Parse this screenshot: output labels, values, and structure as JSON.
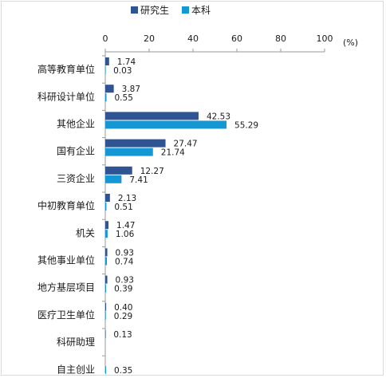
{
  "chart_data": {
    "type": "bar",
    "orientation": "horizontal",
    "unit_label": "(%)",
    "xlim": [
      0,
      100
    ],
    "xticks": [
      "0",
      "20",
      "40",
      "60",
      "80",
      "100"
    ],
    "grid": false,
    "legend_position": "top",
    "categories": [
      "高等教育单位",
      "科研设计单位",
      "其他企业",
      "国有企业",
      "三资企业",
      "中初教育单位",
      "机关",
      "其他事业单位",
      "地方基层项目",
      "医疗卫生单位",
      "科研助理",
      "自主创业"
    ],
    "series": [
      {
        "name": "研究生",
        "color": "#2f5494",
        "values": [
          1.74,
          3.87,
          42.53,
          27.47,
          12.27,
          2.13,
          1.47,
          0.93,
          0.93,
          0.4,
          0.13,
          null
        ]
      },
      {
        "name": "本科",
        "color": "#1597d4",
        "values": [
          0.03,
          0.55,
          55.29,
          21.74,
          7.41,
          0.51,
          1.06,
          0.74,
          0.39,
          0.29,
          null,
          0.35
        ]
      }
    ],
    "value_labels": [
      [
        "1.74",
        "0.03"
      ],
      [
        "3.87",
        "0.55"
      ],
      [
        "42.53",
        "55.29"
      ],
      [
        "27.47",
        "21.74"
      ],
      [
        "12.27",
        "7.41"
      ],
      [
        "2.13",
        "0.51"
      ],
      [
        "1.47",
        "1.06"
      ],
      [
        "0.93",
        "0.74"
      ],
      [
        "0.93",
        "0.39"
      ],
      [
        "0.40",
        "0.29"
      ],
      [
        "0.13",
        null
      ],
      [
        null,
        "0.35"
      ]
    ]
  }
}
